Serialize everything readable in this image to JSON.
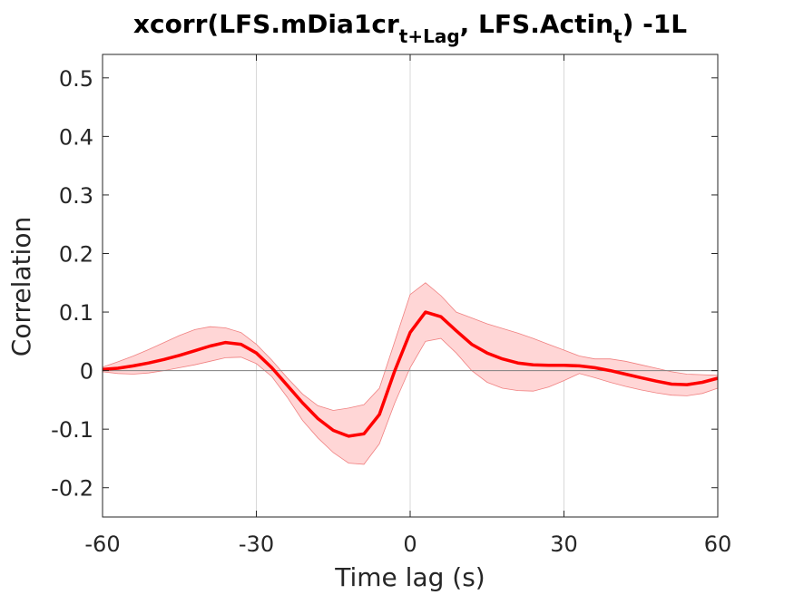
{
  "chart_data": {
    "type": "line",
    "title": {
      "prefix": "xcorr(LFS.mDia1cr",
      "sub1": "t+Lag",
      "middle": ", LFS.Actin",
      "sub2": "t",
      "suffix": ") -1L"
    },
    "xlabel": "Time lag (s)",
    "ylabel": "Correlation",
    "xlim": [
      -60,
      60
    ],
    "ylim": [
      -0.25,
      0.54
    ],
    "xticks": [
      -60,
      -30,
      0,
      30,
      60
    ],
    "xtick_labels": [
      "-60",
      "-30",
      "0",
      "30",
      "60"
    ],
    "yticks": [
      -0.2,
      -0.1,
      0,
      0.1,
      0.2,
      0.3,
      0.4,
      0.5
    ],
    "ytick_labels": [
      "-0.2",
      "-0.1",
      "0",
      "0.1",
      "0.2",
      "0.3",
      "0.4",
      "0.5"
    ],
    "vertical_gridlines_at": [
      -30,
      0,
      30
    ],
    "zero_line": true,
    "legend": "none",
    "colors": {
      "line": "#ff0000",
      "band": "#ffd6d6",
      "band_edge": "#f08080",
      "grid": "#d9d9d9",
      "zero": "#7f7f7f"
    },
    "x": [
      -60,
      -57,
      -54,
      -51,
      -48,
      -45,
      -42,
      -39,
      -36,
      -33,
      -30,
      -27,
      -24,
      -21,
      -18,
      -15,
      -12,
      -9,
      -6,
      -3,
      0,
      3,
      6,
      9,
      12,
      15,
      18,
      21,
      24,
      27,
      30,
      33,
      36,
      39,
      42,
      45,
      48,
      51,
      54,
      57,
      60
    ],
    "series": [
      {
        "values": [
          0.002,
          0.004,
          0.008,
          0.013,
          0.019,
          0.026,
          0.034,
          0.042,
          0.048,
          0.045,
          0.03,
          0.005,
          -0.025,
          -0.055,
          -0.082,
          -0.102,
          -0.112,
          -0.108,
          -0.075,
          0.0,
          0.065,
          0.1,
          0.092,
          0.068,
          0.045,
          0.03,
          0.02,
          0.013,
          0.01,
          0.009,
          0.009,
          0.008,
          0.005,
          0.0,
          -0.006,
          -0.012,
          -0.018,
          -0.023,
          -0.024,
          -0.02,
          -0.013
        ]
      }
    ],
    "band": {
      "upper": [
        0.006,
        0.015,
        0.025,
        0.036,
        0.048,
        0.06,
        0.07,
        0.075,
        0.073,
        0.065,
        0.045,
        0.018,
        -0.012,
        -0.04,
        -0.06,
        -0.068,
        -0.064,
        -0.058,
        -0.03,
        0.05,
        0.13,
        0.15,
        0.128,
        0.1,
        0.09,
        0.08,
        0.072,
        0.064,
        0.055,
        0.045,
        0.035,
        0.025,
        0.02,
        0.02,
        0.016,
        0.01,
        0.004,
        -0.002,
        -0.006,
        -0.007,
        -0.008
      ],
      "lower": [
        -0.002,
        -0.005,
        -0.006,
        -0.004,
        0.0,
        0.005,
        0.01,
        0.016,
        0.022,
        0.023,
        0.012,
        -0.01,
        -0.045,
        -0.085,
        -0.115,
        -0.14,
        -0.158,
        -0.16,
        -0.125,
        -0.055,
        0.005,
        0.05,
        0.055,
        0.03,
        0.0,
        -0.02,
        -0.03,
        -0.034,
        -0.035,
        -0.028,
        -0.017,
        -0.005,
        -0.012,
        -0.02,
        -0.027,
        -0.033,
        -0.038,
        -0.042,
        -0.043,
        -0.039,
        -0.03
      ]
    }
  }
}
